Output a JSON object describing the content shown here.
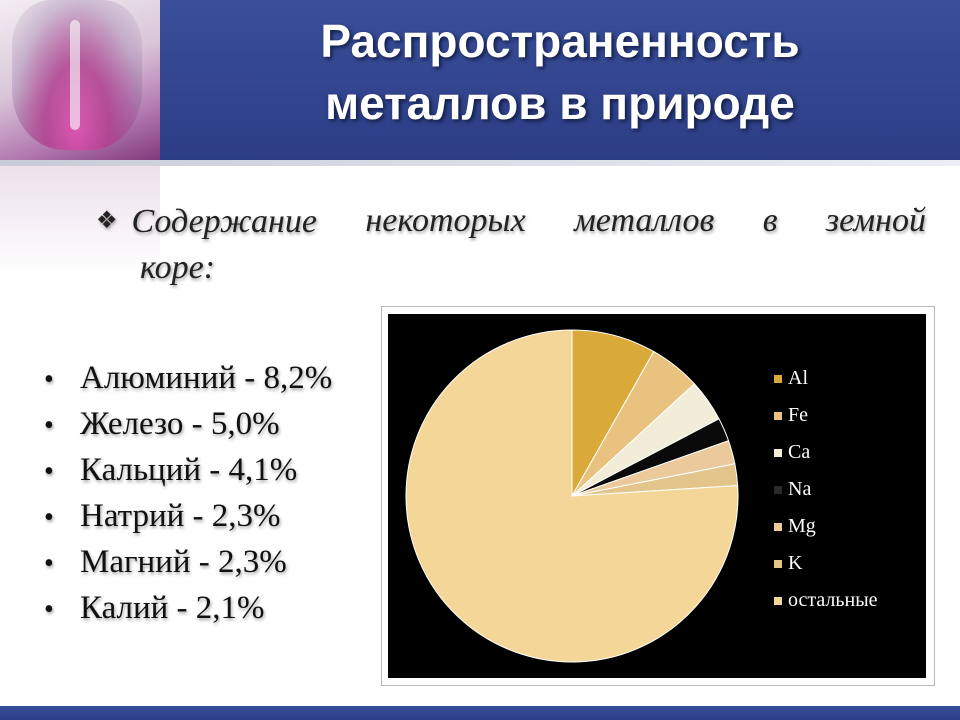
{
  "title_lines": [
    "Распространенность",
    "металлов в природе"
  ],
  "subtitle": {
    "bullet": "❖",
    "line1_words": [
      "Содержание",
      "некоторых",
      "металлов",
      "в",
      "земной"
    ],
    "line2": "коре:"
  },
  "metals": [
    {
      "label": "Алюминий - 8,2%"
    },
    {
      "label": "Железо - 5,0%"
    },
    {
      "label": "Кальций - 4,1%"
    },
    {
      "label": "Натрий - 2,3%"
    },
    {
      "label": "Магний - 2,3%"
    },
    {
      "label": "Калий - 2,1%"
    }
  ],
  "chart_data": {
    "type": "pie",
    "title": "",
    "legend_position": "right",
    "categories": [
      "Al",
      "Fe",
      "Ca",
      "Na",
      "Mg",
      "K",
      "остальные"
    ],
    "values": [
      8.2,
      5.0,
      4.1,
      2.3,
      2.3,
      2.1,
      76.0
    ],
    "colors": [
      "#d9a93a",
      "#e8c27e",
      "#f1edd8",
      "#0a0a0a",
      "#ebc99a",
      "#e3c48a",
      "#f4d798"
    ]
  }
}
